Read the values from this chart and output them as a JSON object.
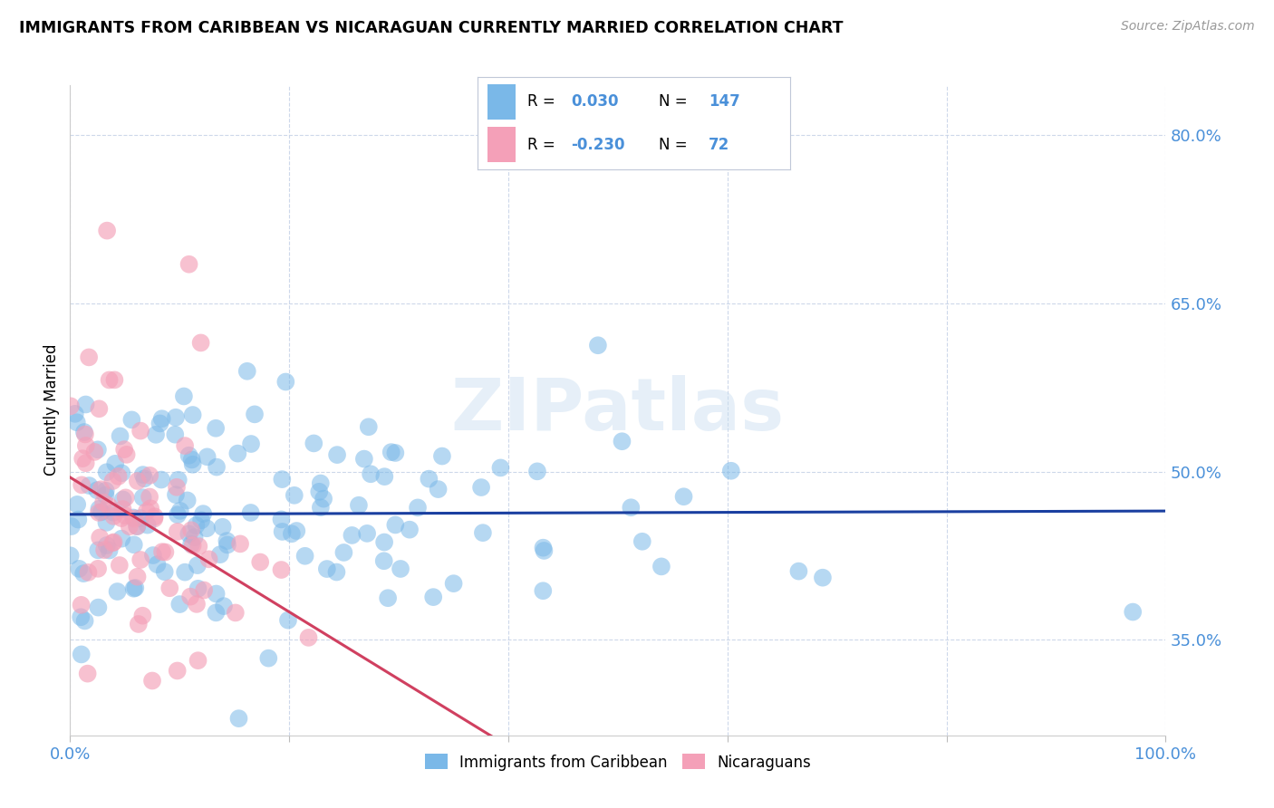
{
  "title": "IMMIGRANTS FROM CARIBBEAN VS NICARAGUAN CURRENTLY MARRIED CORRELATION CHART",
  "source": "Source: ZipAtlas.com",
  "legend_label_1": "Immigrants from Caribbean",
  "legend_label_2": "Nicaraguans",
  "r1": 0.03,
  "n1": 147,
  "r2": -0.23,
  "n2": 72,
  "watermark": "ZIPatlas",
  "blue_color": "#7ab8e8",
  "pink_color": "#f4a0b8",
  "blue_line_color": "#1a3fa0",
  "pink_line_color": "#d04060",
  "dashed_line_color": "#d090a0",
  "axis_tick_color": "#4a90d9",
  "ylabel": "Currently Married",
  "y_ticks": [
    0.35,
    0.5,
    0.65,
    0.8
  ],
  "y_tick_labels": [
    "35.0%",
    "50.0%",
    "65.0%",
    "80.0%"
  ],
  "x_min": 0.0,
  "x_max": 1.0,
  "y_min": 0.265,
  "y_max": 0.845,
  "blue_intercept": 0.462,
  "blue_slope": 0.003,
  "pink_intercept": 0.495,
  "pink_slope": -0.6,
  "seed": 7
}
